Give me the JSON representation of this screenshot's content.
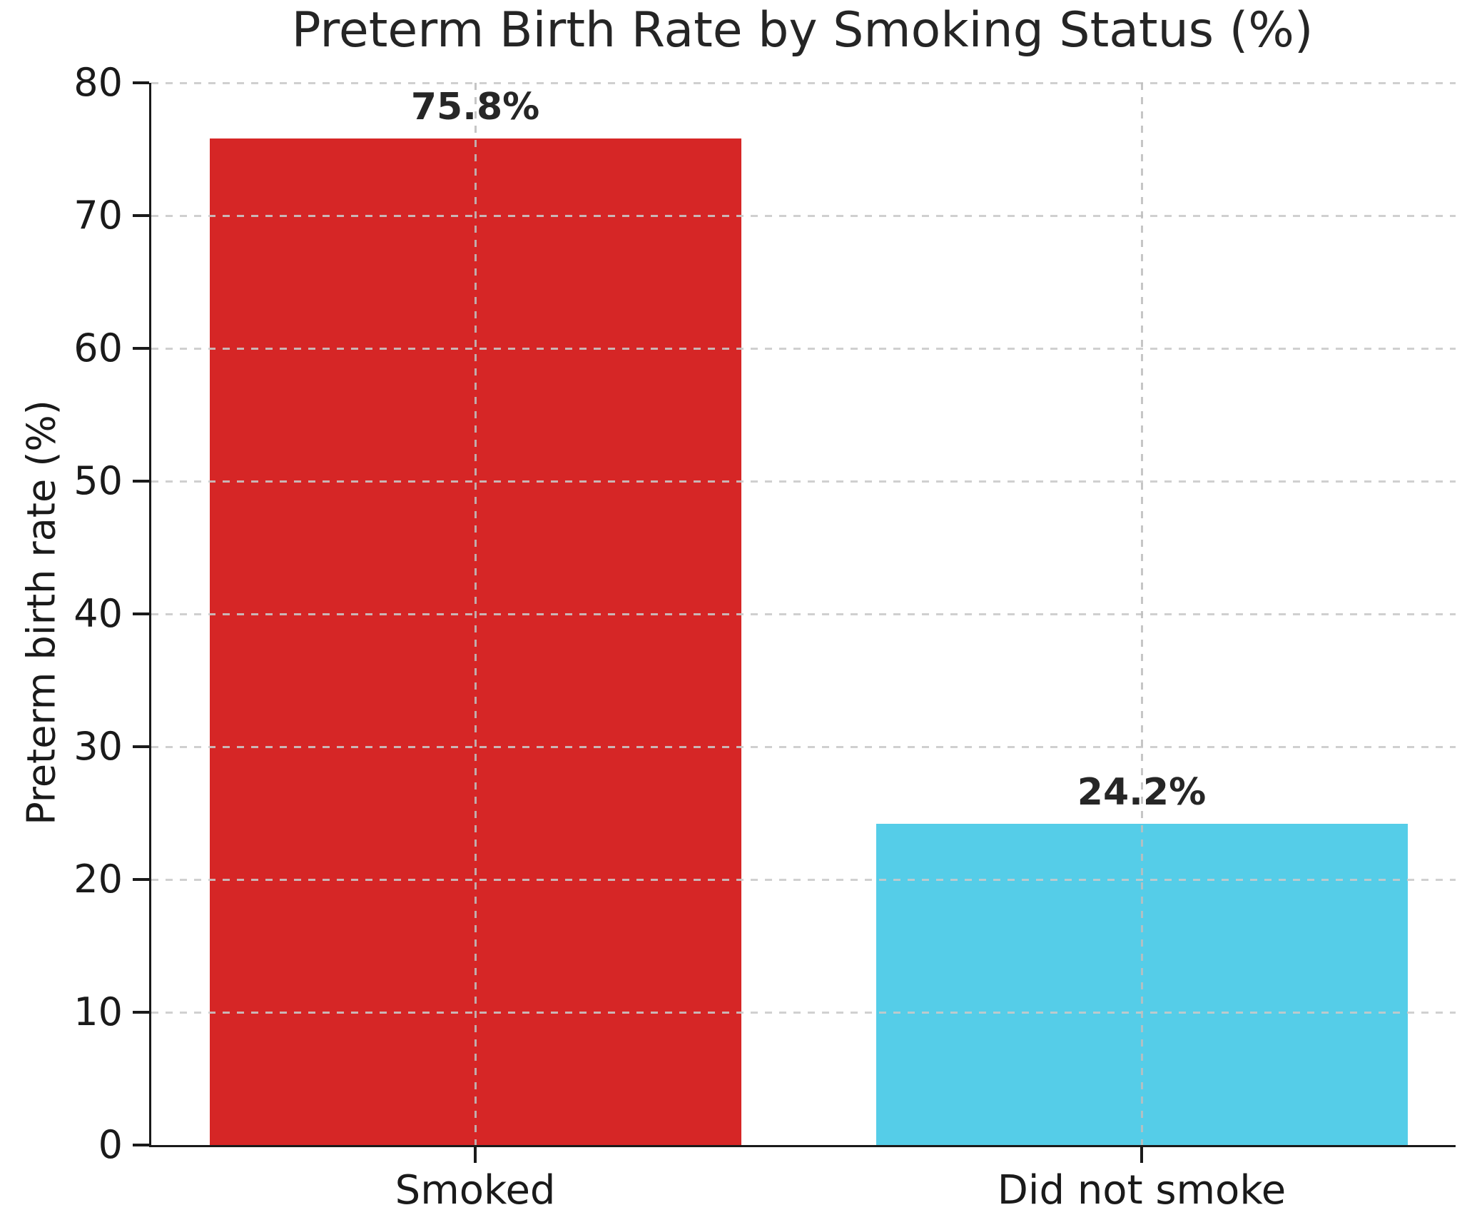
{
  "title": "Preterm Birth Rate by Smoking Status (%)",
  "chart_data": {
    "type": "bar",
    "title": "Preterm Birth Rate by Smoking Status (%)",
    "categories": [
      "Smoked",
      "Did not smoke"
    ],
    "values": [
      75.8,
      24.2
    ],
    "bar_value_labels": [
      "75.8%",
      "24.2%"
    ],
    "bar_colors": [
      "#d62626",
      "#55cde8"
    ],
    "xlabel": "",
    "ylabel": "Preterm birth rate (%)",
    "ylim": [
      0,
      80
    ],
    "yticks": [
      0,
      10,
      20,
      30,
      40,
      50,
      60,
      70,
      80
    ],
    "ytick_labels": [
      "0",
      "10",
      "20",
      "30",
      "40",
      "50",
      "60",
      "70",
      "80"
    ],
    "grid": "dashed horizontal gridlines at each y tick and dashed vertical gridlines at each bar center, drawn above the bars",
    "legend": "none",
    "axis_color": "#1a1a1a",
    "background_color": "#ffffff"
  }
}
